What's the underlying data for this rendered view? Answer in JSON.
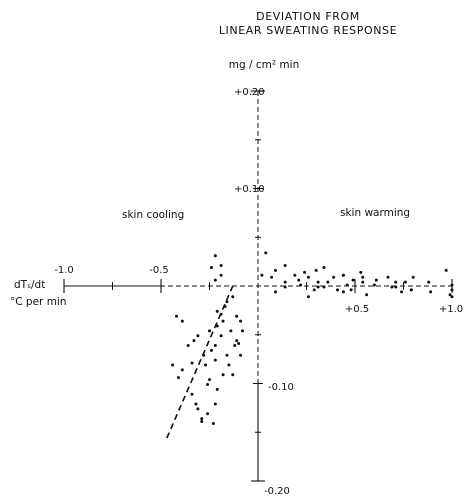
{
  "chart_data": {
    "type": "scatter",
    "title_lines": [
      "DEVIATION FROM",
      "LINEAR SWEATING RESPONSE"
    ],
    "ylabel": "mg / cm² min",
    "xlabel_lines": [
      "dTₛ/dt",
      "°C per min"
    ],
    "quadrant_labels": {
      "left": "skin cooling",
      "right": "skin warming"
    },
    "x_tick_labels": [
      {
        "value": -1.0,
        "label": "-1.0"
      },
      {
        "value": -0.5,
        "label": "-0.5"
      },
      {
        "value": 0.5,
        "label": "+0.5"
      },
      {
        "value": 1.0,
        "label": "+1.0"
      }
    ],
    "y_tick_labels": [
      {
        "value": 0.2,
        "label": "+0.20"
      },
      {
        "value": 0.1,
        "label": "+0.10"
      },
      {
        "value": -0.1,
        "label": "-0.10"
      },
      {
        "value": -0.2,
        "label": "-0.20"
      }
    ],
    "xlim": [
      -1.0,
      1.0
    ],
    "ylim": [
      -0.2,
      0.2
    ],
    "x_minor_ticks": [
      -0.75,
      -0.25,
      0.25,
      0.75
    ],
    "y_minor_ticks": [
      0.15,
      0.05,
      -0.05,
      -0.15
    ],
    "grid": false,
    "legend": "none",
    "colors": {
      "ink": "#111111"
    },
    "series": [
      {
        "x": [
          -0.22,
          -0.19,
          -0.19,
          -0.24,
          -0.22,
          -0.42,
          -0.39,
          -0.44,
          -0.41,
          -0.36,
          -0.31,
          -0.28,
          -0.34,
          -0.25,
          -0.21,
          -0.18,
          -0.19,
          -0.22,
          -0.17,
          -0.13,
          -0.16,
          -0.21,
          -0.11,
          -0.09,
          -0.14,
          -0.19,
          -0.24,
          -0.12,
          -0.16,
          -0.26,
          -0.31,
          -0.21,
          -0.29,
          -0.34,
          -0.18,
          -0.22,
          -0.26,
          -0.32,
          -0.29,
          -0.39,
          -0.25,
          -0.27,
          -0.33,
          -0.23,
          -0.22,
          -0.15,
          -0.11,
          -0.09,
          -0.13,
          -0.1,
          -0.08,
          0.04,
          0.09,
          0.14,
          0.19,
          0.24,
          0.3,
          0.34,
          0.39,
          0.44,
          0.53,
          0.61,
          0.67,
          0.71,
          0.8,
          0.88,
          0.14,
          0.21,
          0.26,
          0.31,
          0.36,
          0.41,
          0.46,
          0.54,
          0.6,
          0.71,
          0.76,
          0.79,
          0.97,
          1.0,
          1.0,
          1.0,
          0.09,
          0.14,
          0.22,
          0.29,
          0.34,
          0.44,
          0.48,
          0.56,
          0.69,
          0.74,
          0.79,
          0.89,
          0.99,
          0.07,
          0.26,
          0.44,
          0.54,
          0.02,
          0.31,
          0.49
        ],
        "y": [
          0.031,
          0.021,
          0.011,
          0.019,
          0.006,
          -0.031,
          -0.036,
          -0.081,
          -0.094,
          -0.061,
          -0.051,
          -0.071,
          -0.079,
          -0.046,
          -0.041,
          -0.036,
          -0.029,
          -0.061,
          -0.021,
          -0.011,
          -0.016,
          -0.026,
          -0.031,
          -0.036,
          -0.046,
          -0.051,
          -0.066,
          -0.061,
          -0.071,
          -0.101,
          -0.126,
          -0.106,
          -0.139,
          -0.111,
          -0.091,
          -0.076,
          -0.131,
          -0.121,
          -0.136,
          -0.086,
          -0.096,
          -0.081,
          -0.056,
          -0.141,
          -0.121,
          -0.081,
          -0.056,
          -0.071,
          -0.091,
          -0.059,
          -0.046,
          0.034,
          0.016,
          0.021,
          0.011,
          0.014,
          0.016,
          0.019,
          0.009,
          0.011,
          0.014,
          0.006,
          0.009,
          0.004,
          0.009,
          0.004,
          -0.001,
          0.006,
          0.009,
          -0.001,
          0.004,
          -0.004,
          0.001,
          0.004,
          0.001,
          -0.001,
          0.004,
          -0.004,
          0.016,
          0.001,
          -0.004,
          -0.011,
          -0.006,
          0.004,
          0.001,
          -0.004,
          -0.001,
          -0.006,
          -0.004,
          -0.009,
          -0.001,
          -0.006,
          -0.004,
          -0.006,
          -0.009,
          0.009,
          -0.011,
          0.011,
          0.009,
          0.011,
          0.004,
          0.006
        ]
      }
    ],
    "dashed_line": {
      "x": [
        -0.47,
        -0.13
      ],
      "y": [
        -0.156,
        0.0
      ]
    }
  }
}
